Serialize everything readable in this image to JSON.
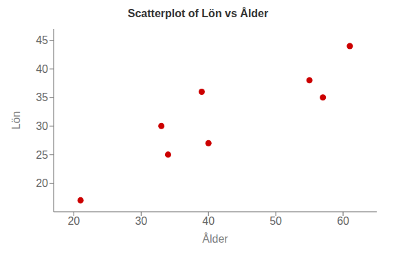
{
  "chart_data": {
    "type": "scatter",
    "title": "Scatterplot of Lön vs Ålder",
    "xlabel": "Ålder",
    "ylabel": "Lön",
    "x": [
      21,
      33,
      34,
      39,
      40,
      55,
      57,
      61
    ],
    "y": [
      17,
      30,
      25,
      36,
      27,
      38,
      35,
      44
    ],
    "color": "#cc0000",
    "marker": "circle",
    "xlim": [
      17,
      65
    ],
    "ylim": [
      15,
      47
    ],
    "xticks": [
      20,
      30,
      40,
      50,
      60
    ],
    "yticks": [
      20,
      25,
      30,
      35,
      40,
      45
    ],
    "grid": false
  }
}
